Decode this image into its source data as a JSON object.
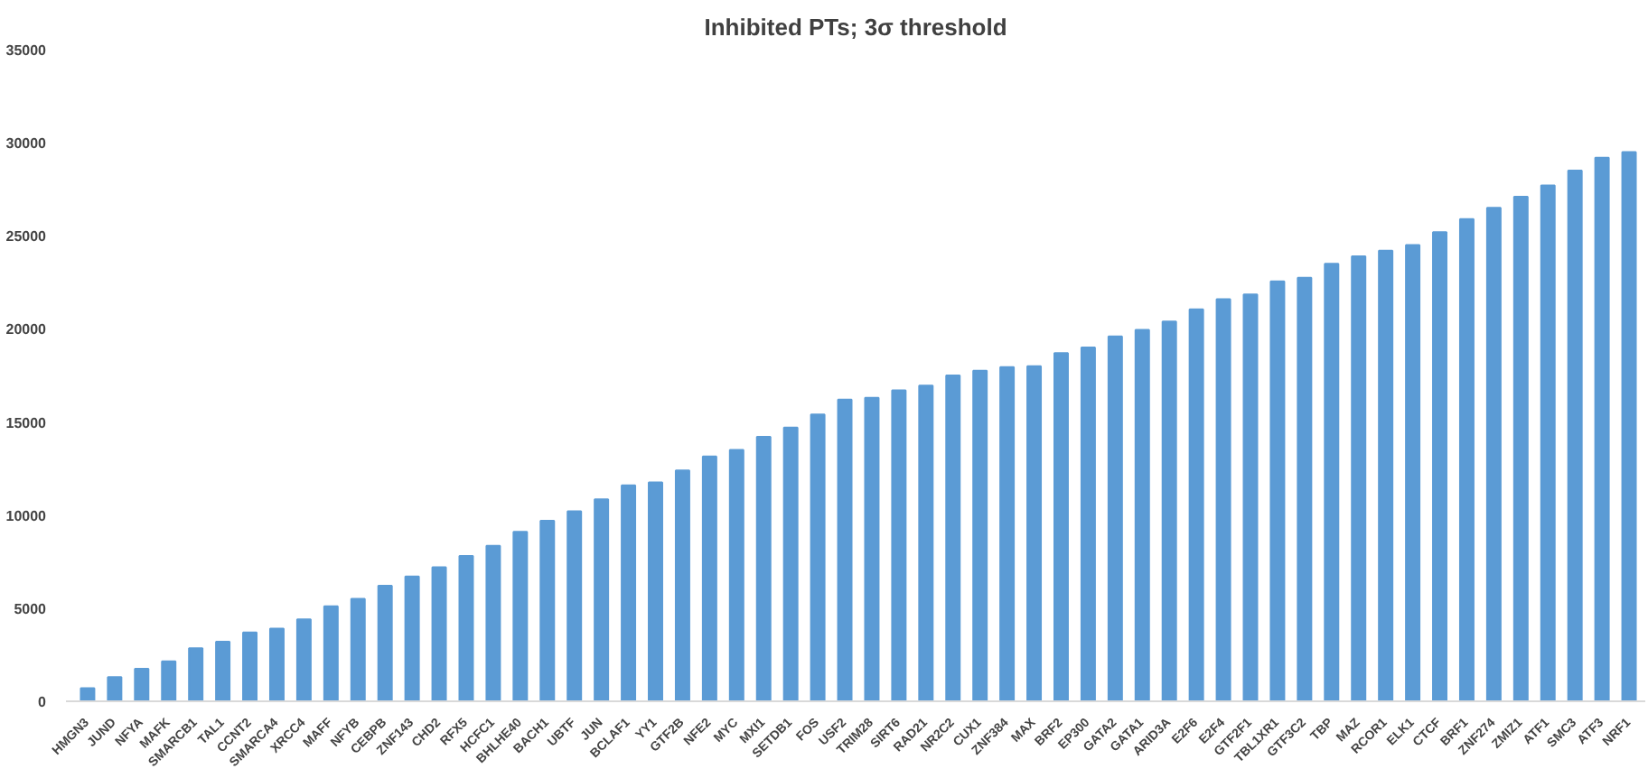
{
  "chart_data": {
    "type": "bar",
    "title": "Inhibited PTs; 3σ threshold",
    "categories": [
      "HMGN3",
      "JUND",
      "NFYA",
      "MAFK",
      "SMARCB1",
      "TAL1",
      "CCNT2",
      "SMARCA4",
      "XRCC4",
      "MAFF",
      "NFYB",
      "CEBPB",
      "ZNF143",
      "CHD2",
      "RFX5",
      "HCFC1",
      "BHLHE40",
      "BACH1",
      "UBTF",
      "JUN",
      "BCLAF1",
      "YY1",
      "GTF2B",
      "NFE2",
      "MYC",
      "MXI1",
      "SETDB1",
      "FOS",
      "USF2",
      "TRIM28",
      "SIRT6",
      "RAD21",
      "NR2C2",
      "CUX1",
      "ZNF384",
      "MAX",
      "BRF2",
      "EP300",
      "GATA2",
      "GATA1",
      "ARID3A",
      "E2F6",
      "E2F4",
      "GTF2F1",
      "TBL1XR1",
      "GTF3C2",
      "TBP",
      "MAZ",
      "RCOR1",
      "ELK1",
      "CTCF",
      "BRF1",
      "ZNF274",
      "ZMIZ1",
      "ATF1",
      "SMC3",
      "ATF3",
      "NRF1"
    ],
    "values": [
      700,
      1300,
      1750,
      2150,
      2850,
      3200,
      3700,
      3900,
      4400,
      5100,
      5500,
      6200,
      6700,
      7200,
      7800,
      8350,
      9100,
      9700,
      10200,
      10850,
      11600,
      11750,
      12400,
      13150,
      13500,
      14200,
      14700,
      15400,
      16200,
      16300,
      16700,
      16950,
      17500,
      17750,
      17950,
      18000,
      18700,
      19000,
      19600,
      19950,
      20400,
      21050,
      21600,
      21850,
      22550,
      22750,
      23500,
      23900,
      24200,
      24500,
      25200,
      25900,
      26500,
      27100,
      27700,
      28500,
      29200,
      29500
    ],
    "color": "#5b9bd5",
    "ylim": [
      0,
      35000
    ],
    "yticks": [
      0,
      5000,
      10000,
      15000,
      20000,
      25000,
      30000,
      35000
    ],
    "grid": false
  }
}
